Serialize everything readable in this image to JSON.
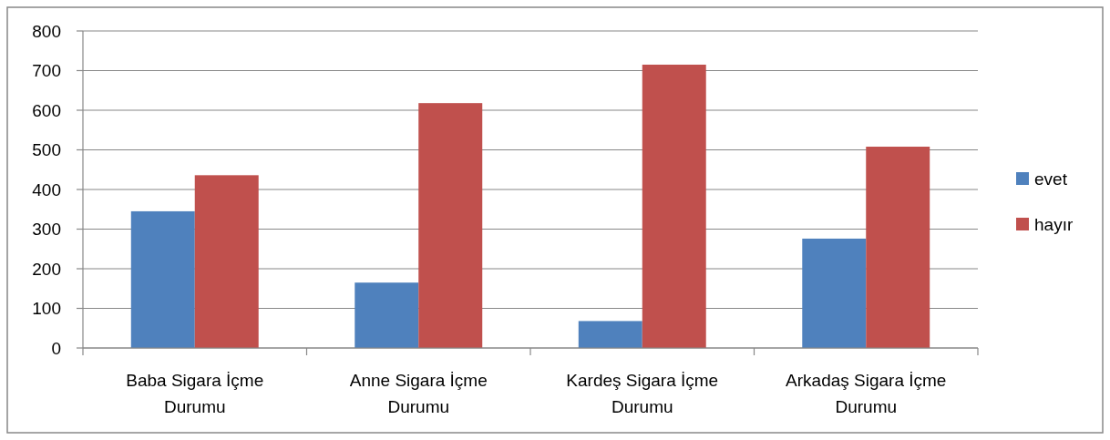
{
  "chart_data": {
    "type": "bar",
    "categories": [
      "Baba Sigara İçme Durumu",
      "Anne Sigara İçme Durumu",
      "Kardeş Sigara İçme Durumu",
      "Arkadaş Sigara İçme Durumu"
    ],
    "series": [
      {
        "name": "evet",
        "color": "#4f81bd",
        "values": [
          345,
          165,
          68,
          276
        ]
      },
      {
        "name": "hayır",
        "color": "#c0504d",
        "values": [
          436,
          618,
          715,
          508
        ]
      }
    ],
    "ylim": [
      0,
      800
    ],
    "yticks": [
      0,
      100,
      200,
      300,
      400,
      500,
      600,
      700,
      800
    ],
    "grid": "y",
    "legend": "right"
  }
}
